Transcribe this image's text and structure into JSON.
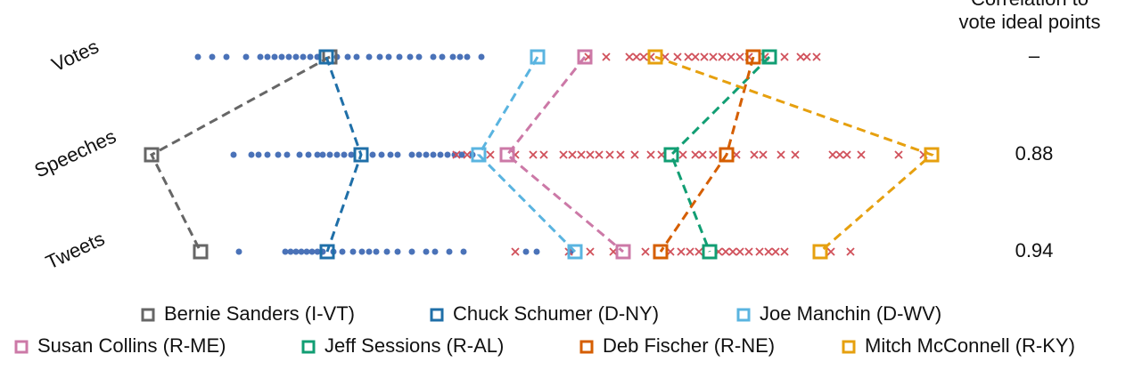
{
  "chart_data": {
    "type": "dot-strip",
    "rows": [
      "Votes",
      "Speeches",
      "Tweets"
    ],
    "xlim": [
      150,
      1070
    ],
    "correlation_header": [
      "Correlation to",
      "vote ideal points"
    ],
    "correlations": [
      "–",
      0.88,
      0.94
    ],
    "points": [
      {
        "marker": "dot",
        "color": "#4a72b8",
        "values": [
          [
            222,
            238,
            254,
            276,
            292,
            300,
            308,
            316,
            324,
            332,
            340,
            348,
            356,
            378,
            390,
            400,
            414,
            426,
            436,
            448,
            460,
            470,
            486,
            496,
            508,
            516,
            524,
            540
          ],
          [
            262,
            282,
            290,
            300,
            312,
            322,
            336,
            346,
            356,
            362,
            370,
            378,
            386,
            394,
            418,
            428,
            438,
            446,
            462,
            470,
            478,
            486,
            494,
            502,
            510,
            518,
            530
          ],
          [
            268,
            320,
            326,
            332,
            338,
            344,
            350,
            356,
            362,
            374,
            384,
            396,
            406,
            414,
            422,
            434,
            446,
            462,
            478,
            488,
            504,
            520,
            590,
            602,
            640
          ]
        ]
      },
      {
        "marker": "cross",
        "color": "#d0505a",
        "values": [
          [
            660,
            680,
            706,
            714,
            722,
            730,
            746,
            760,
            772,
            780,
            790,
            800,
            810,
            820,
            830,
            840,
            858,
            880,
            898,
            905,
            916
          ],
          [
            512,
            524,
            550,
            578,
            598,
            610,
            632,
            642,
            652,
            662,
            672,
            684,
            696,
            712,
            730,
            742,
            766,
            780,
            788,
            800,
            826,
            846,
            856,
            876,
            892,
            934,
            942,
            950,
            966,
            1008,
            1036
          ],
          [
            578,
            638,
            662,
            688,
            724,
            752,
            764,
            774,
            784,
            806,
            814,
            822,
            830,
            840,
            852,
            862,
            870,
            880,
            932,
            954
          ]
        ]
      }
    ],
    "senators": [
      {
        "name": "Bernie Sanders (I-VT)",
        "color": "#666666",
        "values": [
          370,
          170,
          225
        ]
      },
      {
        "name": "Chuck Schumer (D-NY)",
        "color": "#1f6fa8",
        "values": [
          366,
          405,
          367
        ]
      },
      {
        "name": "Joe Manchin (D-WV)",
        "color": "#5ab4e0",
        "values": [
          603,
          537,
          645
        ]
      },
      {
        "name": "Susan Collins (R-ME)",
        "color": "#cc79a7",
        "values": [
          656,
          569,
          699
        ]
      },
      {
        "name": "Jeff Sessions (R-AL)",
        "color": "#119e73",
        "values": [
          863,
          753,
          796
        ]
      },
      {
        "name": "Deb Fischer (R-NE)",
        "color": "#d55e00",
        "values": [
          845,
          815,
          741
        ]
      },
      {
        "name": "Mitch McConnell (R-KY)",
        "color": "#e6a00f",
        "values": [
          735,
          1045,
          920
        ]
      }
    ]
  }
}
